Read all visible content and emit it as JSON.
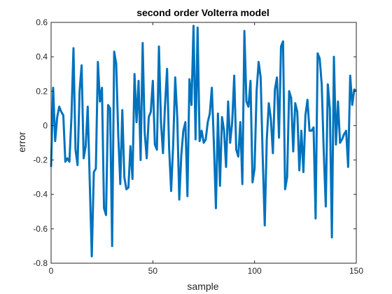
{
  "chart_data": {
    "type": "line",
    "title": "second order Volterra model",
    "xlabel": "sample",
    "ylabel": "error",
    "xlim": [
      0,
      150
    ],
    "ylim": [
      -0.8,
      0.6
    ],
    "xticks": [
      0,
      50,
      100,
      150
    ],
    "yticks": [
      -0.8,
      -0.6,
      -0.4,
      -0.2,
      0,
      0.2,
      0.4,
      0.6
    ],
    "xtick_labels": [
      "0",
      "50",
      "100",
      "150"
    ],
    "ytick_labels": [
      "-0.8",
      "-0.6",
      "-0.4",
      "-0.2",
      "0",
      "0.2",
      "0.4",
      "0.6"
    ],
    "grid": false,
    "line_color": "#0072BD",
    "series": [
      {
        "x": [
          0,
          1,
          2,
          3,
          4,
          5,
          6,
          7,
          8,
          9,
          10,
          11,
          12,
          13,
          14,
          15,
          16,
          17,
          18,
          19,
          20,
          21,
          22,
          23,
          24,
          25,
          26,
          27,
          28,
          29,
          30,
          31,
          32,
          33,
          34,
          35,
          36,
          37,
          38,
          39,
          40,
          41,
          42,
          43,
          44,
          45,
          46,
          47,
          48,
          49,
          50,
          51,
          52,
          53,
          54,
          55,
          56,
          57,
          58,
          59,
          60,
          61,
          62,
          63,
          64,
          65,
          66,
          67,
          68,
          69,
          70,
          71,
          72,
          73,
          74,
          75,
          76,
          77,
          78,
          79,
          80,
          81,
          82,
          83,
          84,
          85,
          86,
          87,
          88,
          89,
          90,
          91,
          92,
          93,
          94,
          95,
          96,
          97,
          98,
          99,
          100,
          101,
          102,
          103,
          104,
          105,
          106,
          107,
          108,
          109,
          110,
          111,
          112,
          113,
          114,
          115,
          116,
          117,
          118,
          119,
          120,
          121,
          122,
          123,
          124,
          125,
          126,
          127,
          128,
          129,
          130,
          131,
          132,
          133,
          134,
          135,
          136,
          137,
          138,
          139,
          140,
          141,
          142,
          143,
          144,
          145,
          146,
          147,
          148,
          149,
          150
        ],
        "y": [
          -0.24,
          0.22,
          -0.09,
          0.05,
          0.11,
          0.08,
          0.06,
          -0.21,
          -0.19,
          -0.21,
          0.05,
          0.45,
          -0.14,
          -0.23,
          0.2,
          0.35,
          -0.19,
          -0.12,
          0.11,
          -0.33,
          -0.76,
          -0.27,
          -0.25,
          0.37,
          0.14,
          0.22,
          -0.48,
          -0.52,
          0.12,
          0.1,
          -0.7,
          0.43,
          0.36,
          -0.05,
          -0.34,
          0.09,
          -0.3,
          -0.37,
          -0.36,
          -0.12,
          -0.31,
          0.3,
          0.02,
          0.26,
          -0.2,
          0.48,
          -0.04,
          -0.19,
          0.05,
          0.08,
          0.26,
          -0.11,
          -0.14,
          0.46,
          0.02,
          -0.16,
          0.12,
          0.33,
          -0.13,
          -0.38,
          -0.11,
          0.28,
          0.05,
          -0.43,
          -0.17,
          -0.03,
          0.02,
          -0.41,
          0.27,
          0.12,
          0.58,
          -0.08,
          0.57,
          -0.09,
          -0.03,
          -0.1,
          -0.08,
          0.02,
          0.07,
          0.22,
          -0.1,
          -0.48,
          0.07,
          -0.35,
          0.05,
          -0.03,
          -0.24,
          0.14,
          -0.1,
          0.02,
          0.29,
          -0.14,
          -0.18,
          0.02,
          -0.34,
          0.55,
          0.14,
          0.11,
          0.26,
          -0.33,
          -0.25,
          0.2,
          0.37,
          0.28,
          -0.18,
          -0.58,
          -0.08,
          0.13,
          0.04,
          -0.16,
          0.21,
          0.28,
          -0.07,
          0.46,
          0.49,
          -0.37,
          -0.3,
          0.2,
          0.16,
          -0.15,
          0.13,
          0.08,
          -0.26,
          -0.03,
          -0.27,
          0.06,
          0.15,
          -0.03,
          -0.03,
          -0.01,
          -0.54,
          0.42,
          0.39,
          0.24,
          -0.15,
          -0.47,
          0.24,
          0.1,
          -0.65,
          0.4,
          -0.11,
          0.14,
          -0.1,
          -0.08,
          -0.05,
          -0.03,
          -0.24,
          0.29,
          0.12,
          0.21,
          0.2
        ]
      }
    ]
  }
}
